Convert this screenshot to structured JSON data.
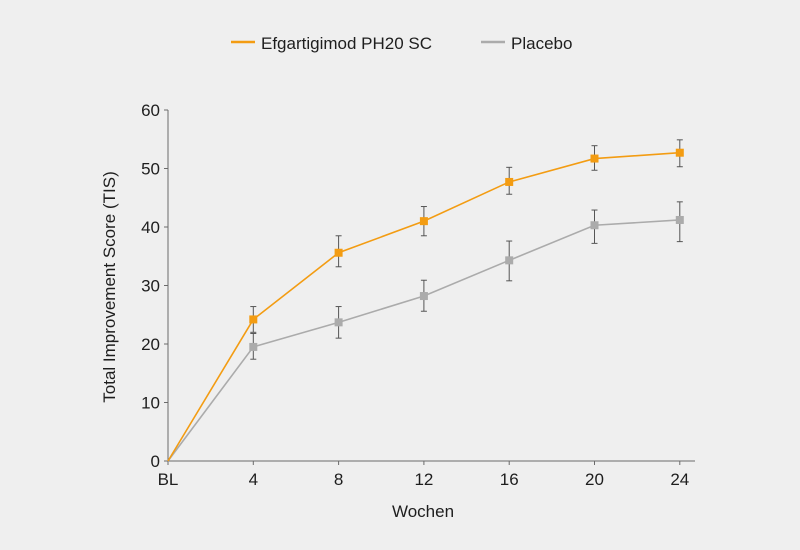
{
  "chart_data": {
    "type": "line",
    "title": "",
    "xlabel": "Wochen",
    "ylabel": "Total Improvement Score (TIS)",
    "categories": [
      "BL",
      "4",
      "8",
      "12",
      "16",
      "20",
      "24"
    ],
    "ylim": [
      0,
      60
    ],
    "yticks": [
      0,
      10,
      20,
      30,
      40,
      50,
      60
    ],
    "grid": false,
    "legend_position": "top-center",
    "series": [
      {
        "name": "Efgartigimod PH20 SC",
        "color": "#f39c12",
        "values": [
          0,
          24.2,
          35.6,
          41,
          47.7,
          51.7,
          52.7
        ],
        "error_low": [
          0,
          22,
          33.2,
          38.5,
          45.6,
          49.7,
          50.3
        ],
        "error_high": [
          0,
          26.4,
          38.5,
          43.5,
          50.2,
          53.9,
          54.9
        ]
      },
      {
        "name": "Placebo",
        "color": "#ababab",
        "values": [
          0,
          19.5,
          23.7,
          28.2,
          34.3,
          40.3,
          41.2
        ],
        "error_low": [
          0,
          17.4,
          21,
          25.6,
          30.8,
          37.2,
          37.5
        ],
        "error_high": [
          0,
          21.8,
          26.4,
          30.9,
          37.6,
          42.9,
          44.3
        ]
      }
    ]
  }
}
